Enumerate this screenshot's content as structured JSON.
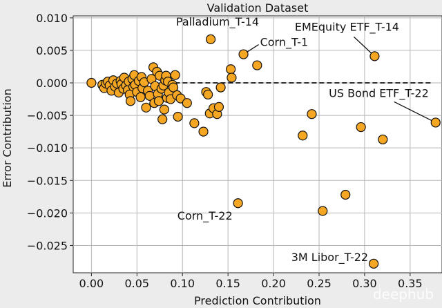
{
  "chart_data": {
    "type": "scatter",
    "title": "Validation Dataset",
    "xlabel": "Prediction Contribution",
    "ylabel": "Error Contribution",
    "xlim": [
      -0.02,
      0.385
    ],
    "ylim": [
      -0.0292,
      0.0103
    ],
    "xticks": [
      0.0,
      0.05,
      0.1,
      0.15,
      0.2,
      0.25,
      0.3,
      0.35
    ],
    "xtick_labels": [
      "0.00",
      "0.05",
      "0.10",
      "0.15",
      "0.20",
      "0.25",
      "0.30",
      "0.35"
    ],
    "yticks": [
      0.01,
      0.005,
      0.0,
      -0.005,
      -0.01,
      -0.015,
      -0.02,
      -0.025
    ],
    "ytick_labels": [
      "0.010",
      "0.005",
      "0.000",
      "−0.005",
      "−0.010",
      "−0.015",
      "−0.020",
      "−0.025"
    ],
    "grid": true,
    "reference_line_y": 0.0,
    "marker_color": "#F5A623",
    "marker_edge_color": "#111111",
    "points": [
      {
        "x": 0.0,
        "y": 0.0
      },
      {
        "x": 0.012,
        "y": -0.0003
      },
      {
        "x": 0.014,
        "y": -0.0008
      },
      {
        "x": 0.016,
        "y": -0.0001
      },
      {
        "x": 0.018,
        "y": 0.0002
      },
      {
        "x": 0.02,
        "y": -0.0004
      },
      {
        "x": 0.022,
        "y": -0.0012
      },
      {
        "x": 0.024,
        "y": 0.0004
      },
      {
        "x": 0.026,
        "y": -0.0006
      },
      {
        "x": 0.028,
        "y": -0.0001
      },
      {
        "x": 0.03,
        "y": -0.0015
      },
      {
        "x": 0.032,
        "y": 0.0003
      },
      {
        "x": 0.033,
        "y": -0.0002
      },
      {
        "x": 0.035,
        "y": -0.0009
      },
      {
        "x": 0.036,
        "y": 0.0008
      },
      {
        "x": 0.038,
        "y": -0.0004
      },
      {
        "x": 0.04,
        "y": -0.0011
      },
      {
        "x": 0.041,
        "y": 0.0002
      },
      {
        "x": 0.042,
        "y": -0.0018
      },
      {
        "x": 0.043,
        "y": -0.0028
      },
      {
        "x": 0.045,
        "y": 0.0006
      },
      {
        "x": 0.046,
        "y": -0.0006
      },
      {
        "x": 0.047,
        "y": 0.0012
      },
      {
        "x": 0.048,
        "y": -0.0003
      },
      {
        "x": 0.05,
        "y": -0.0014
      },
      {
        "x": 0.052,
        "y": 0.0003
      },
      {
        "x": 0.054,
        "y": -0.0022
      },
      {
        "x": 0.055,
        "y": 0.0009
      },
      {
        "x": 0.056,
        "y": -0.0008
      },
      {
        "x": 0.058,
        "y": 0.0001
      },
      {
        "x": 0.06,
        "y": -0.0038
      },
      {
        "x": 0.062,
        "y": -0.0012
      },
      {
        "x": 0.064,
        "y": -0.002
      },
      {
        "x": 0.066,
        "y": 0.0006
      },
      {
        "x": 0.068,
        "y": 0.0024
      },
      {
        "x": 0.069,
        "y": -0.0031
      },
      {
        "x": 0.07,
        "y": -0.0005
      },
      {
        "x": 0.072,
        "y": 0.0017
      },
      {
        "x": 0.073,
        "y": -0.0017
      },
      {
        "x": 0.074,
        "y": -0.0028
      },
      {
        "x": 0.075,
        "y": 0.0011
      },
      {
        "x": 0.077,
        "y": -0.0009
      },
      {
        "x": 0.078,
        "y": -0.0056
      },
      {
        "x": 0.079,
        "y": -0.0004
      },
      {
        "x": 0.08,
        "y": -0.0041
      },
      {
        "x": 0.081,
        "y": 0.0004
      },
      {
        "x": 0.082,
        "y": 0.0011
      },
      {
        "x": 0.083,
        "y": -0.0023
      },
      {
        "x": 0.084,
        "y": 0.0002
      },
      {
        "x": 0.085,
        "y": -0.0015
      },
      {
        "x": 0.087,
        "y": -0.0025
      },
      {
        "x": 0.089,
        "y": -0.0003
      },
      {
        "x": 0.09,
        "y": -0.0007
      },
      {
        "x": 0.092,
        "y": 0.0012
      },
      {
        "x": 0.094,
        "y": -0.0019
      },
      {
        "x": 0.095,
        "y": -0.0052
      },
      {
        "x": 0.098,
        "y": -0.0024
      },
      {
        "x": 0.105,
        "y": -0.0031
      },
      {
        "x": 0.113,
        "y": -0.0062
      },
      {
        "x": 0.123,
        "y": -0.0075
      },
      {
        "x": 0.126,
        "y": -0.0014
      },
      {
        "x": 0.128,
        "y": -0.0018
      },
      {
        "x": 0.13,
        "y": -0.0047
      },
      {
        "x": 0.131,
        "y": 0.0067
      },
      {
        "x": 0.134,
        "y": -0.0039
      },
      {
        "x": 0.138,
        "y": -0.0048
      },
      {
        "x": 0.14,
        "y": -0.0037
      },
      {
        "x": 0.142,
        "y": -0.0007
      },
      {
        "x": 0.153,
        "y": 0.0021
      },
      {
        "x": 0.154,
        "y": 0.0008
      },
      {
        "x": 0.161,
        "y": -0.0185
      },
      {
        "x": 0.167,
        "y": 0.0044
      },
      {
        "x": 0.182,
        "y": 0.0027
      },
      {
        "x": 0.232,
        "y": -0.0081
      },
      {
        "x": 0.242,
        "y": -0.0048
      },
      {
        "x": 0.254,
        "y": -0.0197
      },
      {
        "x": 0.279,
        "y": -0.0172
      },
      {
        "x": 0.296,
        "y": -0.0068
      },
      {
        "x": 0.31,
        "y": -0.0278
      },
      {
        "x": 0.311,
        "y": 0.0041
      },
      {
        "x": 0.32,
        "y": -0.0087
      },
      {
        "x": 0.378,
        "y": -0.0061
      }
    ],
    "annotations": [
      {
        "text": "Palladium_T-14",
        "x": 0.131,
        "y": 0.0067
      },
      {
        "text": "Corn_T-1",
        "x": 0.167,
        "y": 0.0044
      },
      {
        "text": "EMEquity ETF_T-14",
        "x": 0.311,
        "y": 0.0041
      },
      {
        "text": "US Bond ETF_T-22",
        "x": 0.378,
        "y": -0.0061
      },
      {
        "text": "Corn_T-22",
        "x": 0.161,
        "y": -0.0185
      },
      {
        "text": "3M Libor_T-22",
        "x": 0.31,
        "y": -0.0278
      }
    ]
  },
  "watermark": "deephub"
}
